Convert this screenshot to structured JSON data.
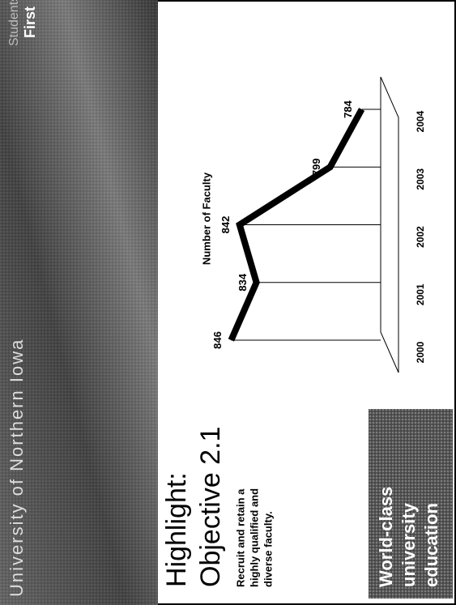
{
  "banner": {
    "title": "University of Northern Iowa",
    "logo": [
      "Students",
      "First"
    ]
  },
  "heading": [
    "Highlight:",
    "Objective 2.1"
  ],
  "description": [
    "Recruit and retain a",
    "highly qualified and",
    "diverse faculty."
  ],
  "badge": [
    "World-class",
    "university",
    "education"
  ],
  "chart_data": {
    "type": "line",
    "title": "Number of Faculty",
    "categories": [
      "2000",
      "2001",
      "2002",
      "2003",
      "2004"
    ],
    "values": [
      846,
      834,
      842,
      799,
      784
    ],
    "color": "#000000",
    "ylim": [
      775,
      850
    ]
  }
}
